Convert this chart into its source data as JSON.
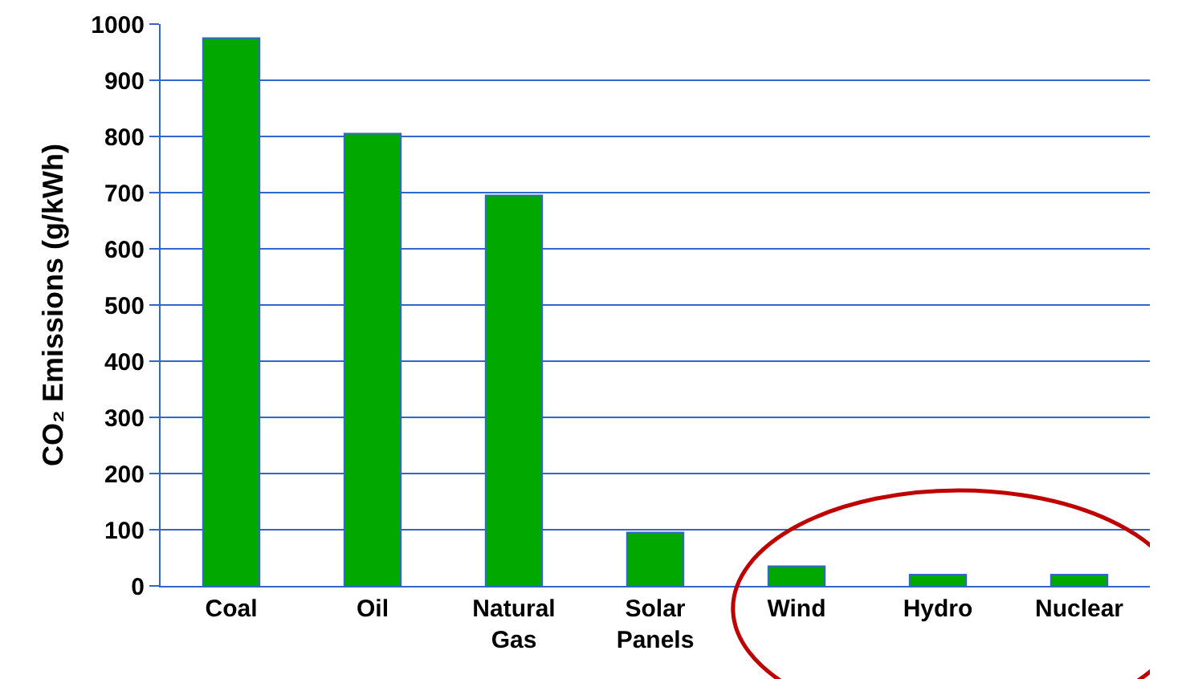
{
  "chart_data": {
    "type": "bar",
    "ylabel": "CO₂ Emissions (g/kWh)",
    "categories": [
      "Coal",
      "Oil",
      "Natural Gas",
      "Solar Panels",
      "Wind",
      "Hydro",
      "Nuclear"
    ],
    "values": [
      975,
      805,
      695,
      95,
      35,
      20,
      20
    ],
    "color": "#00a800",
    "ylim": [
      0,
      1000
    ],
    "yticks": [
      0,
      100,
      200,
      300,
      400,
      500,
      600,
      700,
      800,
      900,
      1000
    ],
    "grid": "y"
  }
}
